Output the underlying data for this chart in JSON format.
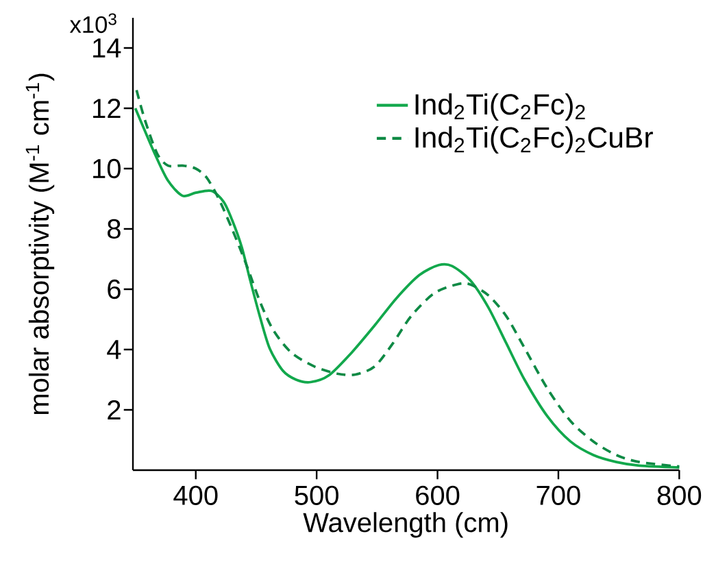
{
  "chart_data": {
    "type": "line",
    "xlabel": "Wavelength (cm)",
    "ylabel": "molar absorptivity (M$^{-1}$ cm$^{-1}$)",
    "annotations": [
      "x10$^{3}$"
    ],
    "xlim": [
      348,
      800
    ],
    "ylim": [
      0,
      15
    ],
    "xticks": [
      400,
      500,
      600,
      700,
      800
    ],
    "yticks": [
      2,
      4,
      6,
      8,
      10,
      12,
      14
    ],
    "grid": false,
    "legend": "top right",
    "marker": "none",
    "series": [
      {
        "name": "Ind$_{2}$Ti(C$_{2}$Fc)$_{2}$",
        "color": "#12a84c",
        "line_style": "solid",
        "x": [
          350,
          366,
          377,
          389,
          400,
          413,
          423,
          430,
          438,
          445,
          453,
          461,
          472,
          483,
          495,
          510,
          529,
          548,
          566,
          585,
          601,
          612,
          627,
          642,
          657,
          672,
          691,
          710,
          729,
          748,
          767,
          800
        ],
        "values": [
          12.0,
          10.5,
          9.6,
          9.1,
          9.2,
          9.26,
          8.9,
          8.3,
          7.4,
          6.3,
          5.1,
          4.05,
          3.3,
          3.0,
          2.92,
          3.14,
          3.9,
          4.8,
          5.7,
          6.47,
          6.8,
          6.77,
          6.3,
          5.4,
          4.2,
          3.0,
          1.78,
          0.95,
          0.5,
          0.27,
          0.15,
          0.09
        ]
      },
      {
        "name": "Ind$_{2}$Ti(C$_{2}$Fc)$_{2}$CuBr",
        "color": "#0f8a45",
        "line_style": "dashed",
        "x": [
          351,
          358,
          368,
          377,
          389,
          400,
          409,
          419,
          430,
          442,
          453,
          464,
          479,
          498,
          517,
          532,
          548,
          563,
          578,
          597,
          616,
          627,
          642,
          657,
          672,
          691,
          710,
          729,
          748,
          767,
          800
        ],
        "values": [
          12.6,
          11.6,
          10.5,
          10.1,
          10.1,
          10.0,
          9.7,
          9.0,
          8.0,
          6.8,
          5.6,
          4.65,
          3.9,
          3.44,
          3.2,
          3.17,
          3.44,
          4.2,
          5.1,
          5.86,
          6.16,
          6.16,
          5.8,
          5.1,
          4.05,
          2.7,
          1.63,
          0.95,
          0.5,
          0.27,
          0.12
        ]
      }
    ]
  }
}
